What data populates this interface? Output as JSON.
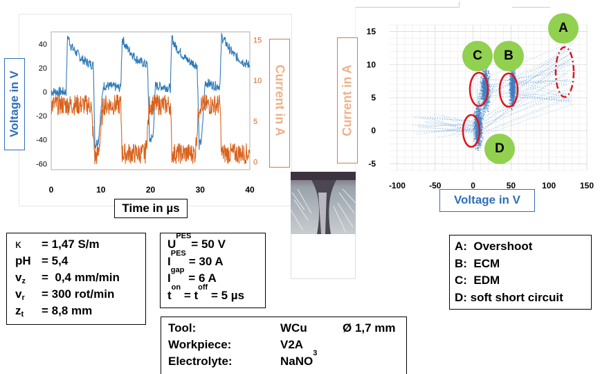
{
  "left_chart": {
    "ylabel_left": "Voltage in V",
    "ylabel_right": "Current in A",
    "xlabel": "Time in µs",
    "x_ticks": [
      "0",
      "10",
      "20",
      "30",
      "40"
    ],
    "y_left_ticks": [
      "40",
      "20",
      "0",
      "-20",
      "-40",
      "-60"
    ],
    "y_right_ticks": [
      "15",
      "10",
      "5",
      "0"
    ]
  },
  "right_chart": {
    "ylabel": "Current in A",
    "xlabel": "Voltage in V",
    "x_ticks": [
      "-100",
      "-50",
      "0",
      "50",
      "100",
      "150"
    ],
    "y_ticks": [
      "15",
      "10",
      "5",
      "0",
      "-5"
    ],
    "markers": {
      "A": "A",
      "B": "B",
      "C": "C",
      "D": "D"
    }
  },
  "chart_data": [
    {
      "type": "line",
      "title": "",
      "xlabel": "Time in µs",
      "ylabel": "Voltage in V",
      "y2label": "Current in A",
      "xlim": [
        0,
        40
      ],
      "ylim": [
        -65,
        50
      ],
      "y2lim": [
        -1,
        16
      ],
      "grid": false,
      "series": [
        {
          "axis": "left",
          "color": "#2f7ab8",
          "points": [
            [
              0,
              0
            ],
            [
              3,
              0
            ],
            [
              3.3,
              47
            ],
            [
              4,
              38
            ],
            [
              5,
              33
            ],
            [
              6,
              28
            ],
            [
              7,
              25
            ],
            [
              8,
              23
            ],
            [
              8.5,
              22
            ],
            [
              8.8,
              -45
            ],
            [
              9.5,
              -40
            ],
            [
              10.5,
              5
            ],
            [
              11,
              5
            ],
            [
              13,
              4
            ],
            [
              14,
              3
            ],
            [
              14.3,
              45
            ],
            [
              15,
              38
            ],
            [
              16,
              33
            ],
            [
              17,
              28
            ],
            [
              18,
              25
            ],
            [
              19,
              23
            ],
            [
              19.4,
              22
            ],
            [
              19.8,
              -40
            ],
            [
              20.5,
              -38
            ],
            [
              21,
              5
            ],
            [
              23,
              4
            ],
            [
              24,
              3
            ],
            [
              24.3,
              45
            ],
            [
              25,
              38
            ],
            [
              26,
              33
            ],
            [
              27,
              28
            ],
            [
              28,
              25
            ],
            [
              29,
              23
            ],
            [
              29.4,
              22
            ],
            [
              29.8,
              -45
            ],
            [
              30.3,
              -40
            ],
            [
              31,
              8
            ],
            [
              33,
              5
            ],
            [
              34,
              5
            ],
            [
              34.3,
              46
            ],
            [
              35,
              42
            ],
            [
              36,
              35
            ],
            [
              37,
              30
            ],
            [
              38,
              27
            ],
            [
              39,
              24
            ],
            [
              40,
              22
            ]
          ]
        },
        {
          "axis": "right",
          "color": "#d9621c",
          "points": [
            [
              0,
              7
            ],
            [
              3,
              7
            ],
            [
              3.3,
              7
            ],
            [
              4,
              7
            ],
            [
              5,
              7
            ],
            [
              6,
              7
            ],
            [
              7,
              7
            ],
            [
              8,
              7
            ],
            [
              8.8,
              0.5
            ],
            [
              9.5,
              1
            ],
            [
              10.5,
              7
            ],
            [
              11,
              7
            ],
            [
              13,
              7
            ],
            [
              14,
              7
            ],
            [
              14.3,
              1
            ],
            [
              15,
              1
            ],
            [
              16,
              1
            ],
            [
              17,
              1
            ],
            [
              18,
              1
            ],
            [
              19,
              1
            ],
            [
              19.8,
              7
            ],
            [
              20.5,
              7
            ],
            [
              21,
              7
            ],
            [
              23,
              7
            ],
            [
              24,
              7
            ],
            [
              24.3,
              1
            ],
            [
              25,
              1
            ],
            [
              26,
              1
            ],
            [
              27,
              1
            ],
            [
              28,
              1
            ],
            [
              29,
              1
            ],
            [
              29.8,
              7
            ],
            [
              30.3,
              7
            ],
            [
              31,
              7
            ],
            [
              33,
              7
            ],
            [
              34,
              7
            ],
            [
              34.3,
              1
            ],
            [
              35,
              1
            ],
            [
              36,
              1
            ],
            [
              37,
              1
            ],
            [
              38,
              1
            ],
            [
              39,
              1
            ],
            [
              40,
              1
            ]
          ]
        }
      ]
    },
    {
      "type": "scatter",
      "title": "",
      "xlabel": "Voltage in V",
      "ylabel": "Current in A",
      "xlim": [
        -110,
        150
      ],
      "ylim": [
        -6,
        16
      ],
      "grid": true,
      "clusters": [
        {
          "label": "B",
          "x": 52,
          "y": 6.5
        },
        {
          "label": "C",
          "x": 16,
          "y": 6.5
        },
        {
          "label": "D",
          "x": 7,
          "y": 0.5
        },
        {
          "label": "A",
          "x": 128,
          "y": 9
        }
      ]
    }
  ],
  "params_box": {
    "kappa_label": "κ",
    "kappa_value": "= 1,47 S/m",
    "ph_label": "pH",
    "ph_value": "= 5,4",
    "vz_label": "v",
    "vz_sub": "z",
    "vz_value": "=  0,4 mm/min",
    "vr_label": "v",
    "vr_sub": "r",
    "vr_value": "= 300 rot/min",
    "zt_label": "z",
    "zt_sub": "t",
    "zt_value": "= 8,8 mm"
  },
  "pes_box": {
    "u_label": "U",
    "u_sub": "PES",
    "u_value": "= 50 V",
    "i_label": "I",
    "i_sub": "PES",
    "i_value": "= 30 A",
    "ig_label": "I",
    "ig_sub": "gap",
    "ig_value": "= 6 A",
    "t_label1": "t",
    "t_sub1": "on",
    "t_mid": " = t",
    "t_sub2": "off",
    "t_value": " = 5 µs"
  },
  "tool_box": {
    "tool_label": "Tool:",
    "tool_value": "WCu",
    "tool_dia": "Ø 1,7 mm",
    "workpiece_label": "Workpiece:",
    "workpiece_value": "V2A",
    "electrolyte_label": "Electrolyte:",
    "electrolyte_value": "NaNO",
    "electrolyte_sub": "3"
  },
  "legend_box": {
    "a": "A:  Overshoot",
    "b": "B:  ECM",
    "c": "C:  EDM",
    "d": "D: soft short circuit"
  }
}
